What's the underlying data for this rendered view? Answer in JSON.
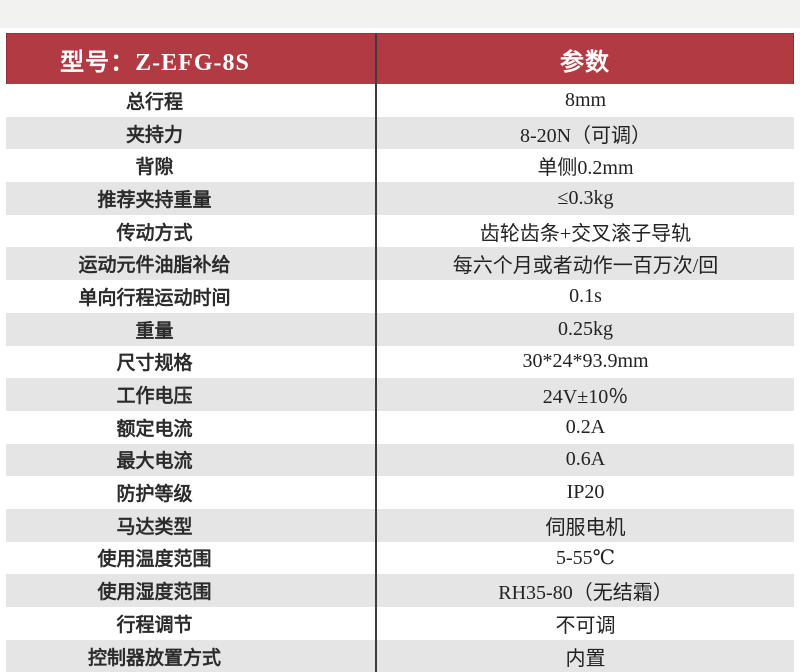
{
  "page": {
    "background": "#ffffff",
    "top_band_color": "#f2f2f1"
  },
  "table": {
    "accent_color": "#b23a42",
    "accent_border_color": "#95323b",
    "divider_color": "#3b3b3b",
    "alt_row_color": "#e5e5e6",
    "header": {
      "model": "型号：Z-EFG-8S",
      "params": "参数"
    },
    "rows": [
      {
        "label": "总行程",
        "value": "8mm"
      },
      {
        "label": "夹持力",
        "value": "8-20N（可调）"
      },
      {
        "label": "背隙",
        "value": "单侧0.2mm"
      },
      {
        "label": "推荐夹持重量",
        "value": "≤0.3kg"
      },
      {
        "label": "传动方式",
        "value": "齿轮齿条+交叉滚子导轨"
      },
      {
        "label": "运动元件油脂补给",
        "value": "每六个月或者动作一百万次/回"
      },
      {
        "label": "单向行程运动时间",
        "value": "0.1s"
      },
      {
        "label": "重量",
        "value": "0.25kg"
      },
      {
        "label": "尺寸规格",
        "value": "30*24*93.9mm"
      },
      {
        "label": "工作电压",
        "value": "24V±10％"
      },
      {
        "label": "额定电流",
        "value": "0.2A"
      },
      {
        "label": "最大电流",
        "value": "0.6A"
      },
      {
        "label": "防护等级",
        "value": "IP20"
      },
      {
        "label": "马达类型",
        "value": "伺服电机"
      },
      {
        "label": "使用温度范围",
        "value": "5-55℃"
      },
      {
        "label": "使用湿度范围",
        "value": "RH35-80（无结霜）"
      },
      {
        "label": "行程调节",
        "value": "不可调"
      },
      {
        "label": "控制器放置方式",
        "value": "内置"
      }
    ]
  }
}
